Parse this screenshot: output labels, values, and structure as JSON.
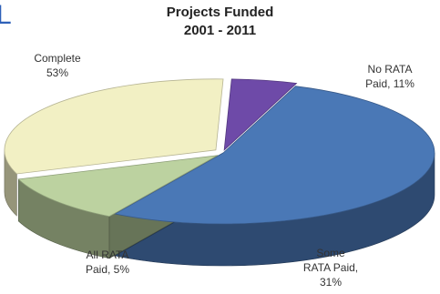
{
  "partial_heading_letter": "L",
  "chart_data": {
    "type": "pie",
    "style": "3d-exploded",
    "title_line1": "Projects Funded",
    "title_line2": "2001 - 2011",
    "slices": [
      {
        "key": "complete",
        "label": "Complete",
        "value": 53,
        "value_text": "53%",
        "color": "#4a78b6"
      },
      {
        "key": "no_rata",
        "label": "No RATA Paid,",
        "value": 11,
        "value_text": "11%",
        "color": "#bcd2a0"
      },
      {
        "key": "some_rata",
        "label": "Some RATA Paid,",
        "value": 31,
        "value_text": "31%",
        "color": "#f2f0c4"
      },
      {
        "key": "all_rata",
        "label": "All RATA Paid,",
        "value": 5,
        "value_text": "5%",
        "color": "#6e4aa8"
      }
    ],
    "label_texts": {
      "complete_l1": "Complete",
      "complete_l2": "53%",
      "no_rata_l1": "No RATA",
      "no_rata_l2": "Paid, 11%",
      "some_rata_l1": "Some",
      "some_rata_l2": "RATA Paid,",
      "some_rata_l3": "31%",
      "all_rata_l1": "All RATA",
      "all_rata_l2": "Paid, 5%"
    },
    "legend": "none"
  }
}
